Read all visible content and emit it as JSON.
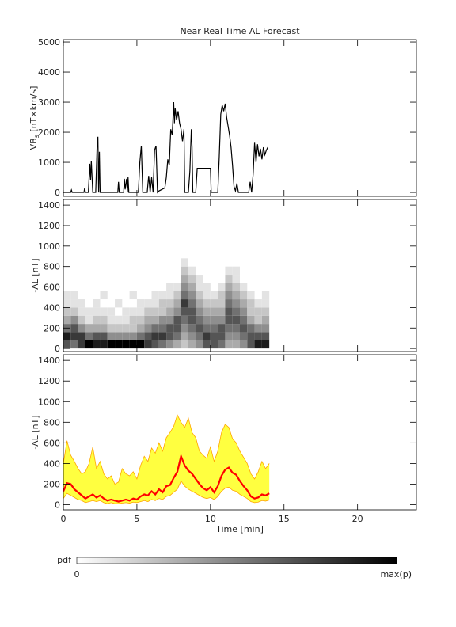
{
  "chart_data": [
    {
      "type": "line",
      "title": "Near Real Time AL Forecast",
      "ylabel": "VB",
      "ylabel_sub": "s",
      "ylabel_unit": " [nT×km/s]",
      "xlim": [
        0,
        24
      ],
      "xticks": [
        0,
        5,
        10,
        15,
        20
      ],
      "show_xtick_labels": false,
      "ylim": [
        -130,
        5080
      ],
      "yticks": [
        0,
        1000,
        2000,
        3000,
        4000,
        5000
      ],
      "color": "#000000",
      "x": [
        0,
        0.5,
        0.55,
        0.6,
        1.4,
        1.45,
        1.5,
        1.7,
        1.8,
        1.85,
        1.9,
        2.0,
        2.2,
        2.3,
        2.35,
        2.4,
        2.45,
        2.5,
        3.2,
        3.7,
        3.75,
        3.8,
        4.1,
        4.15,
        4.2,
        4.3,
        4.35,
        4.4,
        4.45,
        5.1,
        5.2,
        5.3,
        5.4,
        5.7,
        5.8,
        5.9,
        6.0,
        6.1,
        6.2,
        6.3,
        6.4,
        6.5,
        6.9,
        7.0,
        7.1,
        7.2,
        7.3,
        7.4,
        7.5,
        7.55,
        7.6,
        7.7,
        7.8,
        7.9,
        8.0,
        8.1,
        8.2,
        8.25,
        8.5,
        8.6,
        8.7,
        8.75,
        8.8,
        9.0,
        9.1,
        10.0,
        10.05,
        10.5,
        10.6,
        10.7,
        10.8,
        10.9,
        11.0,
        11.1,
        11.2,
        11.3,
        11.4,
        11.5,
        11.6,
        11.7,
        11.8,
        11.9,
        12.6,
        12.7,
        12.8,
        12.9,
        13.0,
        13.1,
        13.2,
        13.3,
        13.4,
        13.5,
        13.6,
        13.7,
        13.8,
        13.9
      ],
      "values": [
        0,
        0,
        80,
        0,
        0,
        150,
        0,
        0,
        950,
        400,
        1050,
        0,
        0,
        1600,
        1850,
        0,
        1350,
        0,
        0,
        0,
        350,
        0,
        0,
        450,
        100,
        450,
        0,
        500,
        0,
        0,
        1000,
        1550,
        0,
        0,
        550,
        0,
        500,
        0,
        1400,
        1550,
        0,
        50,
        150,
        500,
        1100,
        900,
        2100,
        1900,
        3000,
        2300,
        2800,
        2400,
        2700,
        2300,
        2100,
        1700,
        2100,
        0,
        0,
        700,
        2100,
        1500,
        0,
        0,
        800,
        800,
        0,
        0,
        1200,
        2600,
        2900,
        2700,
        2950,
        2500,
        2200,
        1900,
        1500,
        900,
        200,
        50,
        300,
        0,
        0,
        350,
        0,
        600,
        1650,
        1000,
        1600,
        1200,
        1450,
        1100,
        1500,
        1250,
        1400,
        1500
      ]
    },
    {
      "type": "heatmap",
      "ylabel": "-AL [nT]",
      "xlim": [
        0,
        24
      ],
      "xticks": [
        0,
        5,
        10,
        15,
        20
      ],
      "show_xtick_labels": false,
      "ylim": [
        -30,
        1455
      ],
      "yticks": [
        0,
        200,
        400,
        600,
        800,
        1000,
        1200,
        1400
      ],
      "zmax": 9,
      "xbins": [
        0,
        0.5,
        1,
        1.5,
        2,
        2.5,
        3,
        3.5,
        4,
        4.5,
        5,
        5.5,
        6,
        6.5,
        7,
        7.5,
        8,
        8.5,
        9,
        9.5,
        10,
        10.5,
        11,
        11.5,
        12,
        12.5,
        13,
        13.5,
        14
      ],
      "ybins": [
        0,
        80,
        160,
        240,
        320,
        400,
        480,
        560,
        640,
        720,
        800,
        880
      ],
      "z": [
        [
          6,
          8,
          5,
          3,
          2,
          1,
          1,
          0,
          0,
          0,
          0
        ],
        [
          5,
          7,
          6,
          4,
          2,
          1,
          1,
          0,
          0,
          0,
          0
        ],
        [
          7,
          7,
          4,
          2,
          1,
          1,
          0,
          0,
          0,
          0,
          0
        ],
        [
          9,
          5,
          3,
          1,
          1,
          0,
          0,
          0,
          0,
          0,
          0
        ],
        [
          8,
          6,
          3,
          2,
          1,
          1,
          0,
          0,
          0,
          0,
          0
        ],
        [
          8,
          6,
          3,
          2,
          1,
          0,
          1,
          0,
          0,
          0,
          0
        ],
        [
          9,
          4,
          2,
          1,
          1,
          0,
          0,
          0,
          0,
          0,
          0
        ],
        [
          9,
          4,
          2,
          1,
          0,
          1,
          0,
          0,
          0,
          0,
          0
        ],
        [
          9,
          4,
          2,
          1,
          1,
          0,
          0,
          0,
          0,
          0,
          0
        ],
        [
          9,
          4,
          2,
          2,
          1,
          0,
          1,
          0,
          0,
          0,
          0
        ],
        [
          9,
          5,
          3,
          2,
          1,
          1,
          0,
          0,
          0,
          0,
          0
        ],
        [
          7,
          6,
          4,
          3,
          2,
          1,
          0,
          0,
          0,
          0,
          0
        ],
        [
          6,
          7,
          5,
          3,
          2,
          1,
          1,
          0,
          0,
          0,
          0
        ],
        [
          5,
          7,
          5,
          4,
          2,
          2,
          1,
          0,
          0,
          0,
          0
        ],
        [
          4,
          6,
          6,
          4,
          3,
          2,
          1,
          1,
          0,
          0,
          0
        ],
        [
          3,
          5,
          6,
          6,
          4,
          3,
          2,
          1,
          0,
          0,
          0
        ],
        [
          2,
          3,
          4,
          5,
          6,
          7,
          5,
          4,
          3,
          2,
          1
        ],
        [
          3,
          4,
          5,
          6,
          6,
          5,
          4,
          3,
          2,
          1,
          0
        ],
        [
          4,
          5,
          6,
          5,
          4,
          3,
          2,
          1,
          1,
          0,
          0
        ],
        [
          6,
          7,
          5,
          4,
          3,
          2,
          1,
          1,
          0,
          0,
          0
        ],
        [
          6,
          6,
          5,
          4,
          3,
          2,
          1,
          0,
          0,
          0,
          0
        ],
        [
          5,
          6,
          6,
          4,
          3,
          2,
          2,
          1,
          0,
          0,
          0
        ],
        [
          3,
          4,
          5,
          6,
          6,
          5,
          4,
          3,
          2,
          1,
          0
        ],
        [
          3,
          4,
          5,
          6,
          5,
          4,
          3,
          2,
          1,
          1,
          0
        ],
        [
          4,
          5,
          6,
          5,
          4,
          3,
          2,
          1,
          0,
          0,
          0
        ],
        [
          6,
          6,
          5,
          3,
          2,
          2,
          1,
          0,
          0,
          0,
          0
        ],
        [
          8,
          6,
          4,
          2,
          2,
          1,
          0,
          0,
          0,
          0,
          0
        ],
        [
          8,
          6,
          4,
          3,
          2,
          1,
          1,
          0,
          0,
          0,
          0
        ]
      ]
    },
    {
      "type": "band",
      "ylabel": "-AL [nT]",
      "xlabel": "Time [min]",
      "xlim": [
        0,
        24
      ],
      "xticks": [
        0,
        5,
        10,
        15,
        20
      ],
      "show_xtick_labels": true,
      "ylim": [
        -50,
        1455
      ],
      "yticks": [
        0,
        200,
        400,
        600,
        800,
        1000,
        1200,
        1400
      ],
      "fill": "#ffff40",
      "x": [
        0,
        0.25,
        0.5,
        0.75,
        1,
        1.25,
        1.5,
        1.75,
        2,
        2.25,
        2.5,
        2.75,
        3,
        3.25,
        3.5,
        3.75,
        4,
        4.25,
        4.5,
        4.75,
        5,
        5.25,
        5.5,
        5.75,
        6,
        6.25,
        6.5,
        6.75,
        7,
        7.25,
        7.5,
        7.75,
        8,
        8.25,
        8.5,
        8.75,
        9,
        9.25,
        9.5,
        9.75,
        10,
        10.25,
        10.5,
        10.75,
        11,
        11.25,
        11.5,
        11.75,
        12,
        12.25,
        12.5,
        12.75,
        13,
        13.25,
        13.5,
        13.75,
        14
      ],
      "series": [
        {
          "color": "#ffa500",
          "values": [
            400,
            620,
            480,
            420,
            350,
            300,
            320,
            400,
            560,
            350,
            420,
            300,
            250,
            280,
            200,
            220,
            350,
            300,
            280,
            320,
            250,
            380,
            470,
            420,
            550,
            500,
            600,
            520,
            650,
            700,
            760,
            870,
            800,
            750,
            840,
            700,
            650,
            520,
            480,
            450,
            560,
            420,
            520,
            700,
            780,
            750,
            640,
            600,
            520,
            460,
            400,
            300,
            250,
            320,
            420,
            350,
            400
          ]
        },
        {
          "color": "#ffa500",
          "values": [
            60,
            110,
            90,
            70,
            50,
            40,
            20,
            30,
            40,
            30,
            40,
            20,
            10,
            20,
            10,
            10,
            15,
            20,
            15,
            25,
            20,
            30,
            40,
            30,
            50,
            40,
            60,
            50,
            80,
            90,
            120,
            150,
            230,
            180,
            150,
            130,
            110,
            90,
            70,
            60,
            70,
            50,
            80,
            130,
            160,
            170,
            140,
            130,
            100,
            80,
            60,
            30,
            20,
            25,
            40,
            35,
            45
          ]
        },
        {
          "color": "#ff0000",
          "values": [
            130,
            210,
            200,
            150,
            120,
            90,
            60,
            80,
            100,
            70,
            90,
            60,
            40,
            50,
            40,
            30,
            40,
            50,
            40,
            60,
            50,
            80,
            100,
            90,
            130,
            100,
            150,
            120,
            180,
            190,
            260,
            320,
            470,
            380,
            330,
            300,
            250,
            200,
            160,
            140,
            170,
            120,
            180,
            280,
            340,
            360,
            310,
            290,
            230,
            180,
            140,
            80,
            60,
            70,
            100,
            90,
            110
          ]
        }
      ]
    }
  ],
  "colorbar": {
    "label": "pdf",
    "min_label": "0",
    "max_label": "max(p)"
  }
}
